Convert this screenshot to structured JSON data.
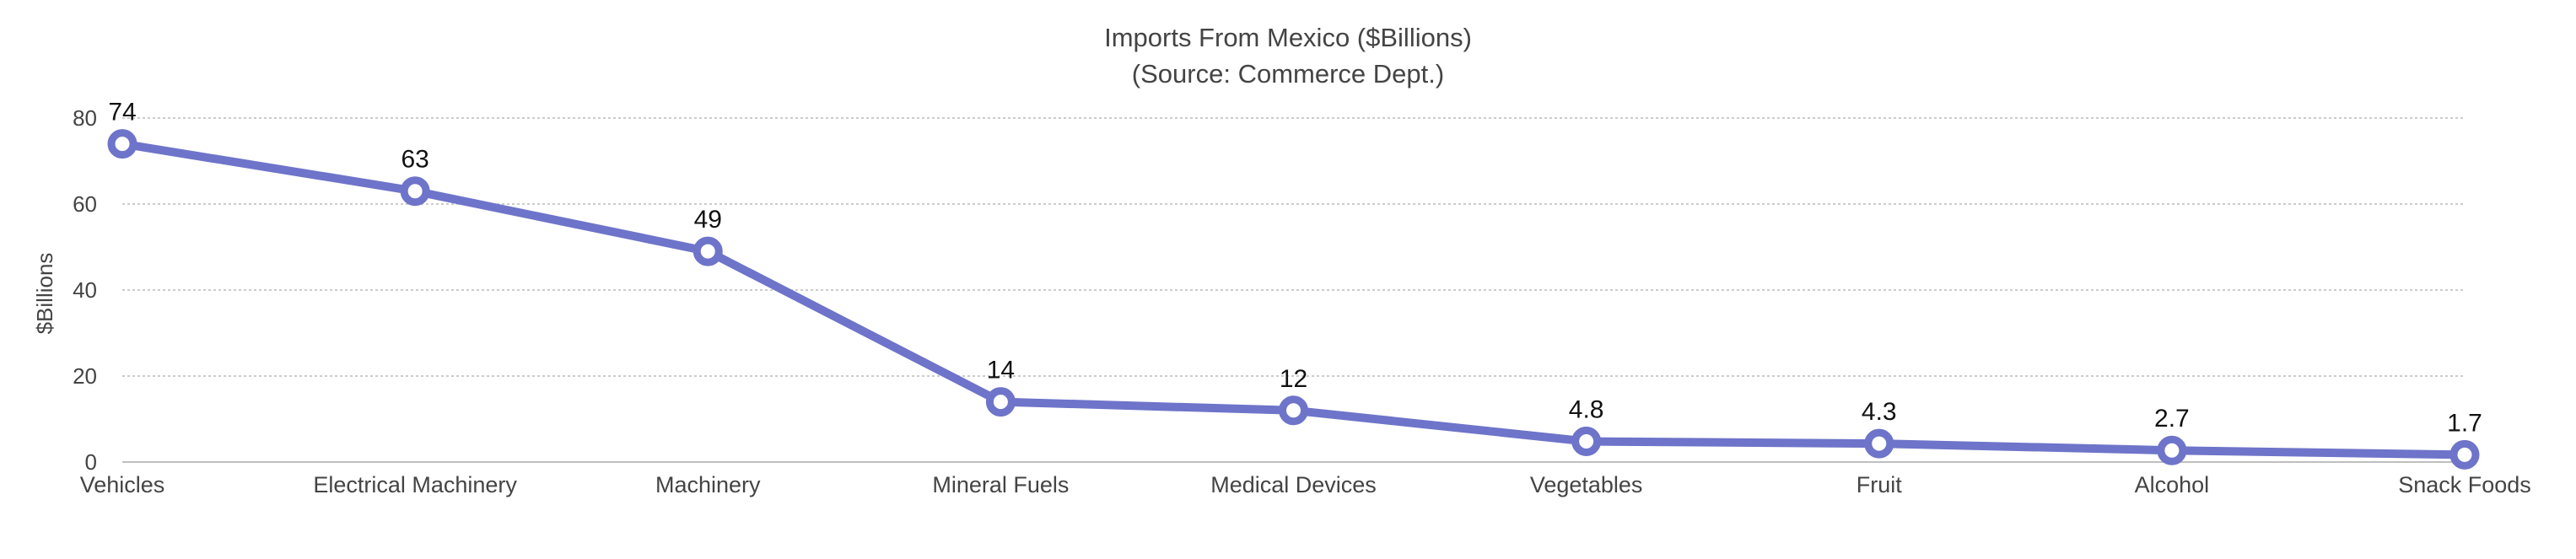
{
  "chart_data": {
    "type": "line",
    "title": "Imports From Mexico  ($Billions)",
    "subtitle": "(Source: Commerce Dept.)",
    "xlabel": "",
    "ylabel": "$Billions",
    "ylim": [
      0,
      80
    ],
    "yticks": [
      "0",
      "20",
      "40",
      "60",
      "80"
    ],
    "grid": true,
    "legend": "none",
    "categories": [
      "Vehicles",
      "Electrical Machinery",
      "Machinery",
      "Mineral Fuels",
      "Medical Devices",
      "Vegetables",
      "Fruit",
      "Alcohol",
      "Snack Foods"
    ],
    "values": [
      74,
      63,
      49,
      14,
      12,
      4.8,
      4.3,
      2.7,
      1.7
    ],
    "data_labels": [
      "74",
      "63",
      "49",
      "14",
      "12",
      "4.8",
      "4.3",
      "2.7",
      "1.7"
    ],
    "colors": {
      "line": "#6e74c9",
      "marker_fill": "#ffffff",
      "grid": "#bbbbbb",
      "axis": "#aaaaaa"
    }
  }
}
